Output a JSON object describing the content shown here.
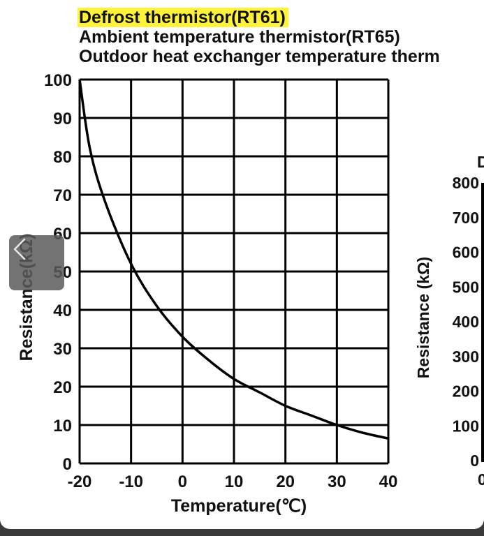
{
  "header": {
    "line1": "Defrost thermistor(RT61)",
    "line2": "Ambient temperature thermistor(RT65)",
    "line3": "Outdoor heat exchanger temperature therm"
  },
  "colors": {
    "highlight": "#fff23a",
    "line": "#000000"
  },
  "chart_data": [
    {
      "type": "line",
      "xlabel": "Temperature(℃)",
      "ylabel": "Resistance(kΩ)",
      "xlim": [
        -20,
        40
      ],
      "ylim": [
        0,
        100
      ],
      "x_ticks": [
        "-20",
        "-10",
        "0",
        "10",
        "20",
        "30",
        "40"
      ],
      "y_ticks": [
        "0",
        "10",
        "20",
        "30",
        "40",
        "50",
        "60",
        "70",
        "80",
        "90",
        "100"
      ],
      "grid": true,
      "series": [
        {
          "x": [
            -20,
            -18,
            -15,
            -10,
            -5,
            0,
            5,
            10,
            15,
            20,
            25,
            30,
            35,
            40
          ],
          "y": [
            100,
            82,
            68,
            52,
            41,
            33,
            27,
            22,
            18.5,
            15,
            12.5,
            10,
            8,
            6.5
          ]
        }
      ]
    },
    {
      "type": "line",
      "ylabel": "Resistance (kΩ)",
      "y_ticks": [
        "0",
        "100",
        "200",
        "300",
        "400",
        "500",
        "600",
        "700",
        "800"
      ],
      "partial_title": "D",
      "partial_x_tick": "0"
    }
  ],
  "nav": {
    "back_icon": "chevron-left-icon"
  }
}
